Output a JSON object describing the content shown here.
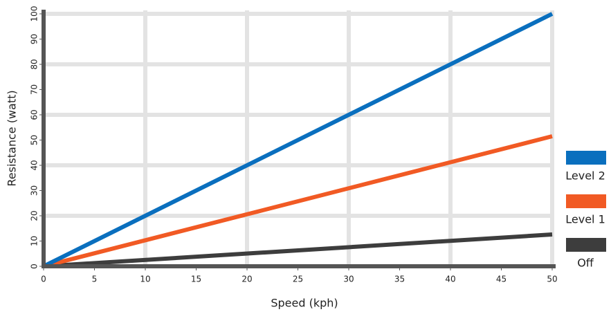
{
  "chart_data": {
    "type": "line",
    "x_label": "Speed (kph)",
    "y_label": "Resistance (watt)",
    "x": [
      0,
      50
    ],
    "series": [
      {
        "name": "Level 2",
        "color": "#0a6fbe",
        "values": [
          0,
          100
        ]
      },
      {
        "name": "Level 1",
        "color": "#f15a24",
        "values": [
          0,
          51.5
        ]
      },
      {
        "name": "Off",
        "color": "#3d3d3d",
        "values": [
          0,
          12.6
        ]
      }
    ],
    "xlim": [
      0,
      50
    ],
    "ylim": [
      0,
      100
    ],
    "xticks": [
      0,
      5,
      10,
      15,
      20,
      25,
      30,
      35,
      40,
      45,
      50
    ],
    "yticks": [
      0,
      10,
      20,
      30,
      40,
      50,
      60,
      70,
      80,
      90,
      100
    ],
    "xgrid": [
      10,
      20,
      30,
      40,
      50
    ],
    "ygrid": [
      20,
      40,
      60,
      80,
      100
    ],
    "legend": "right"
  }
}
